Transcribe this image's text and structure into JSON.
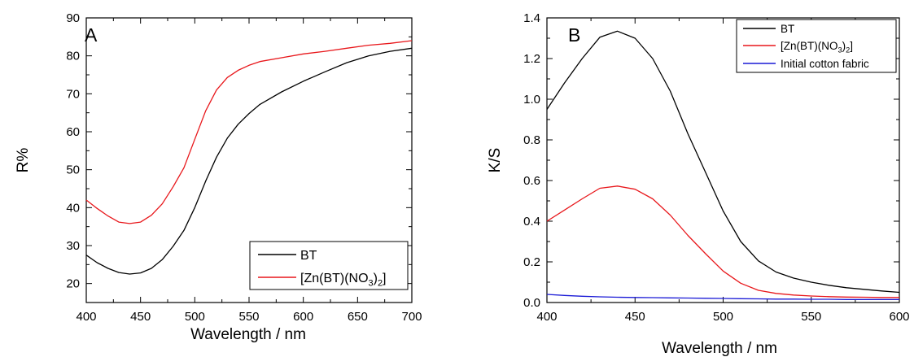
{
  "chart_data": [
    {
      "type": "line",
      "panel_label": "A",
      "xlabel": "Wavelength / nm",
      "ylabel": "R%",
      "xlim": [
        400,
        700
      ],
      "ylim": [
        15,
        90
      ],
      "xticks": [
        400,
        450,
        500,
        550,
        600,
        650,
        700
      ],
      "yticks": [
        20,
        30,
        40,
        50,
        60,
        70,
        80,
        90
      ],
      "grid": false,
      "legend_position": "bottom-right",
      "x": [
        400,
        410,
        420,
        430,
        440,
        450,
        460,
        470,
        480,
        490,
        500,
        510,
        520,
        530,
        540,
        550,
        560,
        580,
        600,
        620,
        640,
        660,
        680,
        700
      ],
      "series": [
        {
          "name": "BT",
          "color": "#000000",
          "values": [
            27.5,
            25.5,
            24.0,
            22.9,
            22.5,
            22.8,
            24.0,
            26.3,
            29.8,
            34.0,
            40.0,
            47.0,
            53.3,
            58.3,
            62.0,
            64.8,
            67.2,
            70.5,
            73.3,
            75.8,
            78.2,
            80.0,
            81.2,
            82.0
          ]
        },
        {
          "name_parts": [
            "[Zn(BT)(NO",
            "3",
            ")",
            "2",
            "]"
          ],
          "color": "#e8171b",
          "values": [
            42.0,
            39.8,
            37.8,
            36.2,
            35.8,
            36.2,
            38.0,
            41.0,
            45.5,
            50.5,
            58.0,
            65.5,
            71.0,
            74.3,
            76.2,
            77.5,
            78.5,
            79.5,
            80.5,
            81.2,
            82.0,
            82.8,
            83.3,
            84.0
          ]
        }
      ]
    },
    {
      "type": "line",
      "panel_label": "B",
      "xlabel": "Wavelength / nm",
      "ylabel": "K/S",
      "xlim": [
        400,
        600
      ],
      "ylim": [
        0.0,
        1.4
      ],
      "xticks": [
        400,
        450,
        500,
        550,
        600
      ],
      "yticks": [
        0.0,
        0.2,
        0.4,
        0.6,
        0.8,
        1.0,
        1.2,
        1.4
      ],
      "grid": false,
      "legend_position": "top-right",
      "x": [
        400,
        410,
        420,
        430,
        440,
        450,
        460,
        470,
        480,
        490,
        500,
        510,
        520,
        530,
        540,
        550,
        560,
        570,
        580,
        590,
        600
      ],
      "series": [
        {
          "name": "BT",
          "color": "#000000",
          "values": [
            0.95,
            1.08,
            1.2,
            1.305,
            1.335,
            1.3,
            1.2,
            1.04,
            0.83,
            0.64,
            0.45,
            0.3,
            0.205,
            0.15,
            0.12,
            0.1,
            0.085,
            0.073,
            0.065,
            0.057,
            0.05
          ]
        },
        {
          "name_parts": [
            "[Zn(BT)(NO",
            "3",
            ")",
            "2",
            "]"
          ],
          "color": "#e8171b",
          "values": [
            0.4,
            0.455,
            0.51,
            0.562,
            0.573,
            0.557,
            0.51,
            0.43,
            0.33,
            0.24,
            0.155,
            0.095,
            0.06,
            0.045,
            0.037,
            0.032,
            0.029,
            0.027,
            0.026,
            0.025,
            0.025
          ]
        },
        {
          "name": "Initial cotton fabric",
          "color": "#1a1ad6",
          "values": [
            0.04,
            0.035,
            0.031,
            0.028,
            0.026,
            0.025,
            0.024,
            0.023,
            0.022,
            0.021,
            0.02,
            0.019,
            0.018,
            0.017,
            0.017,
            0.016,
            0.016,
            0.015,
            0.015,
            0.015,
            0.015
          ]
        }
      ]
    }
  ]
}
